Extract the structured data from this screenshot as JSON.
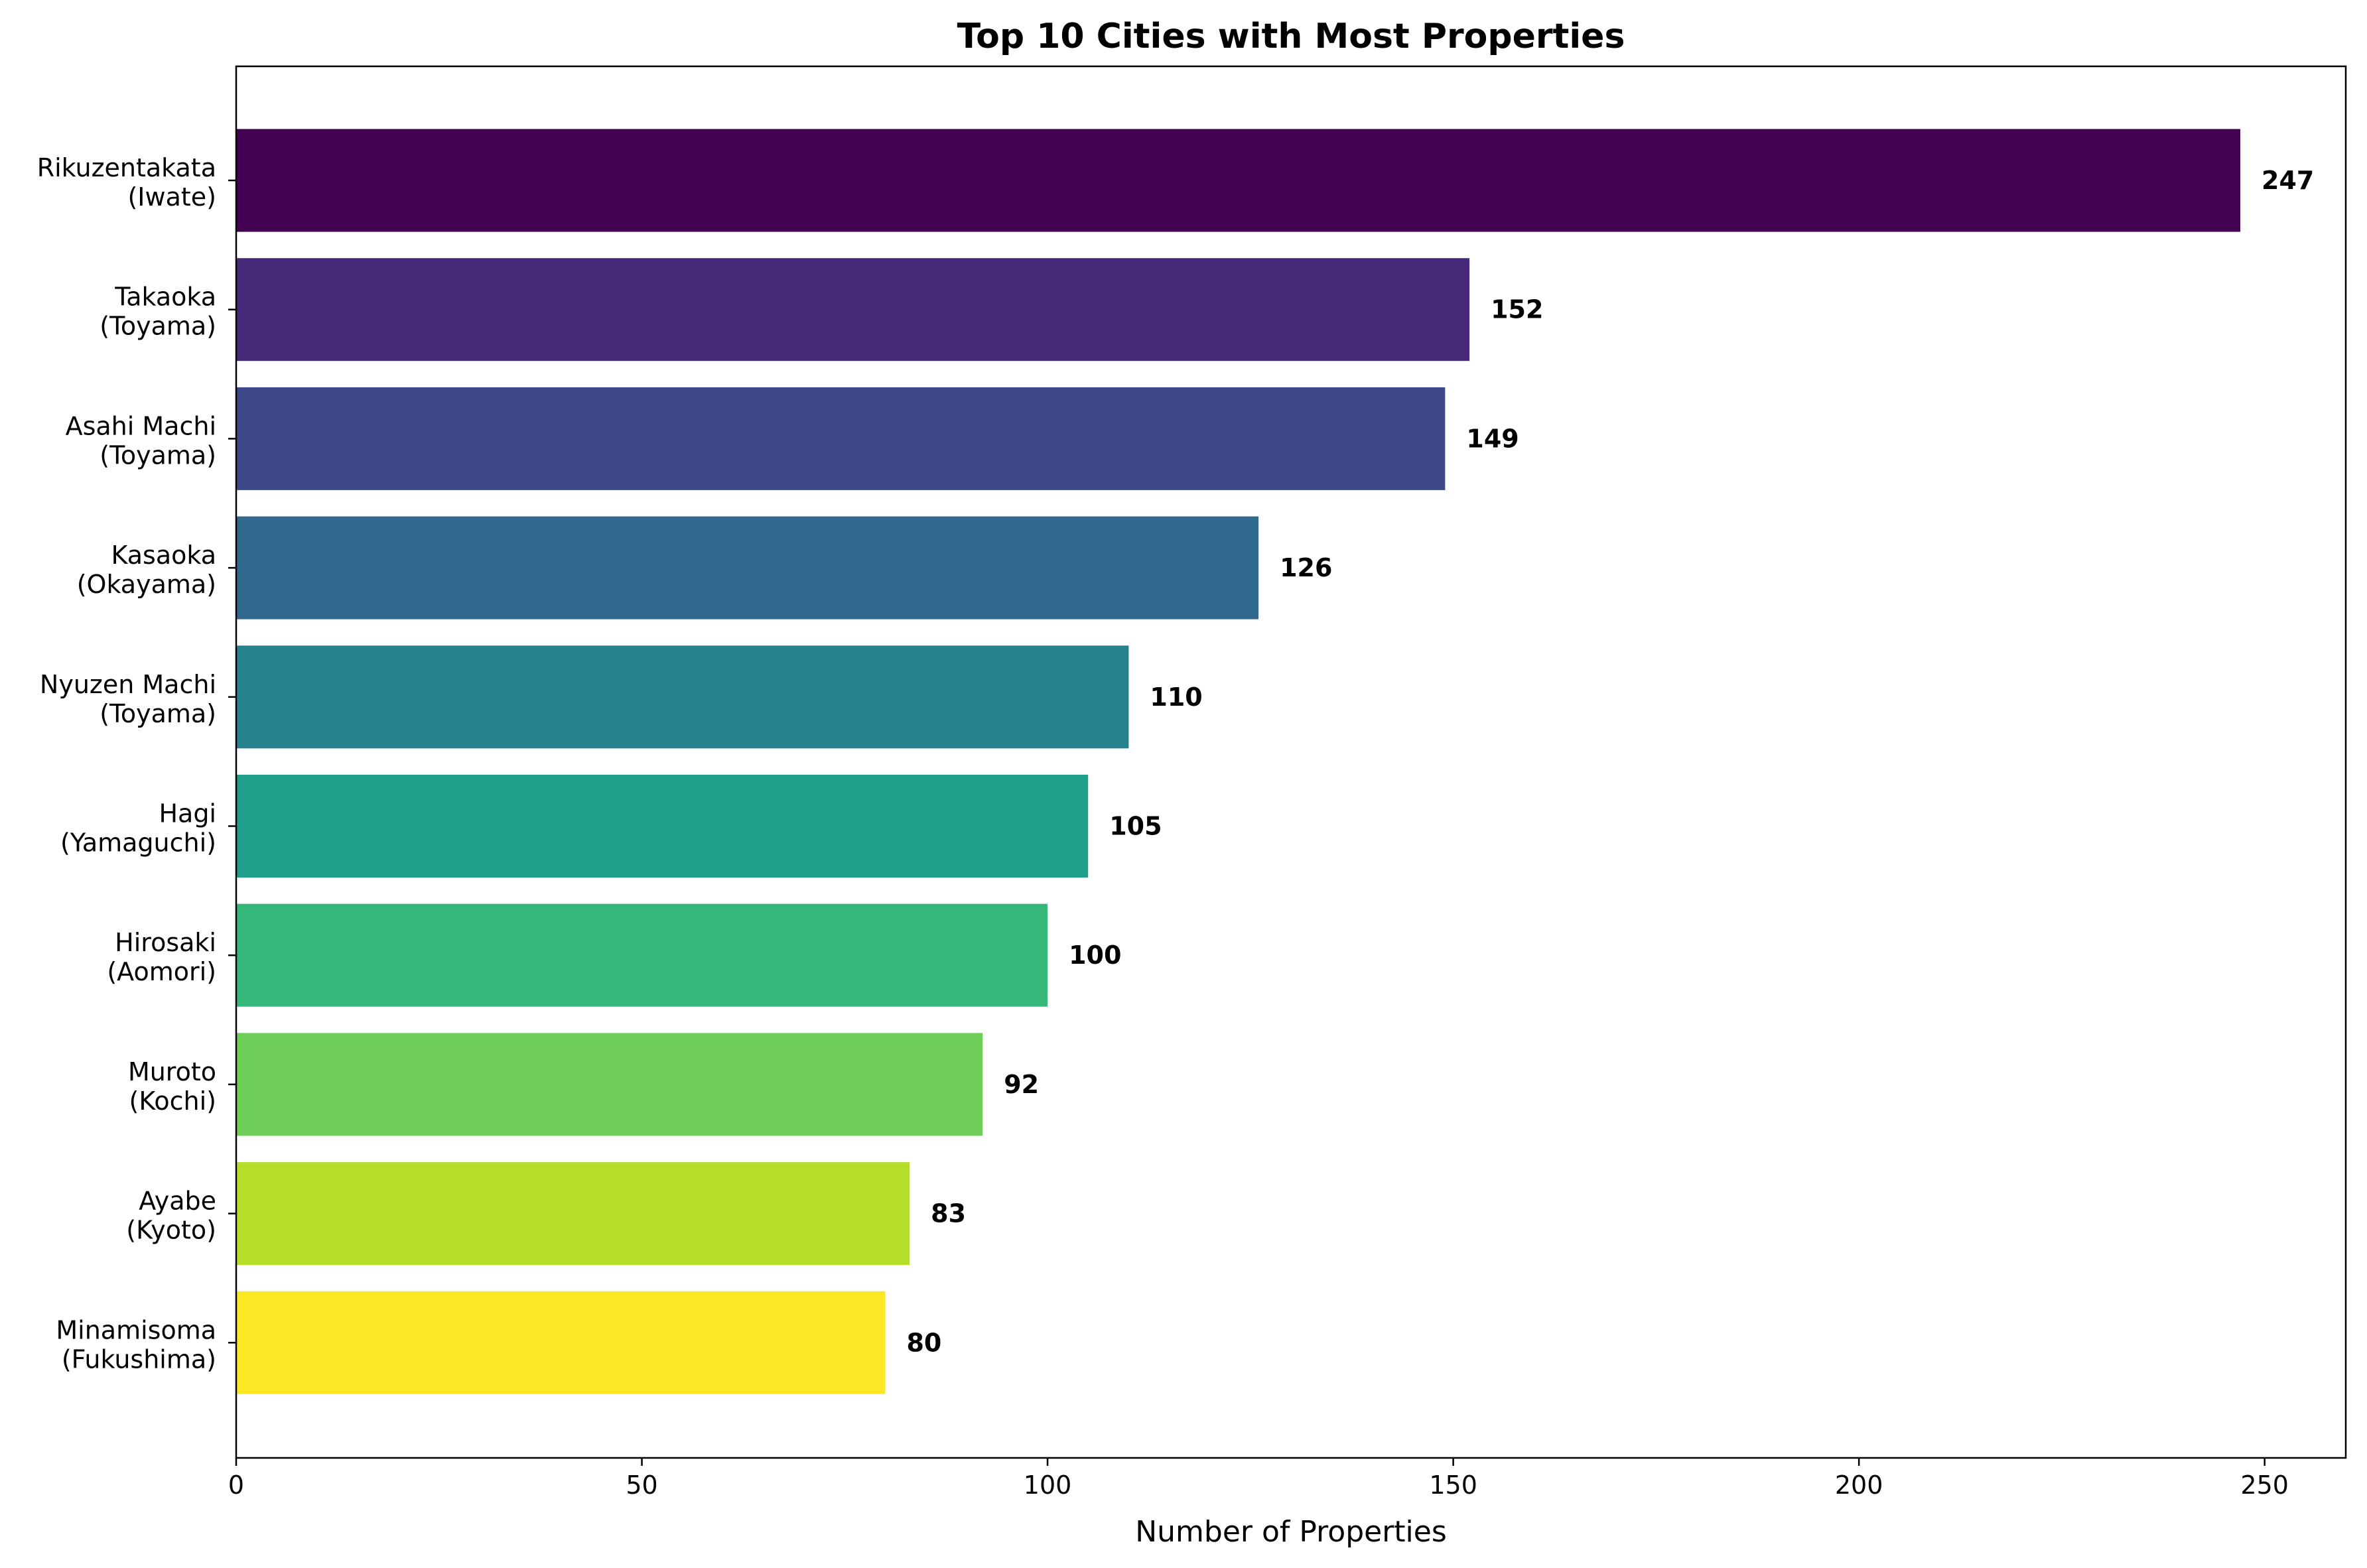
{
  "chart_data": {
    "type": "bar",
    "orientation": "horizontal",
    "title": "Top 10 Cities with Most Properties",
    "xlabel": "Number of Properties",
    "ylabel": "",
    "xlim": [
      0,
      260
    ],
    "xticks": [
      0,
      50,
      100,
      150,
      200,
      250
    ],
    "grid": false,
    "legend": false,
    "colormap": "viridis",
    "categories": [
      {
        "line1": "Rikuzentakata",
        "line2": "(Iwate)"
      },
      {
        "line1": "Takaoka",
        "line2": "(Toyama)"
      },
      {
        "line1": "Asahi Machi",
        "line2": "(Toyama)"
      },
      {
        "line1": "Kasaoka",
        "line2": "(Okayama)"
      },
      {
        "line1": "Nyuzen Machi",
        "line2": "(Toyama)"
      },
      {
        "line1": "Hagi",
        "line2": "(Yamaguchi)"
      },
      {
        "line1": "Hirosaki",
        "line2": "(Aomori)"
      },
      {
        "line1": "Muroto",
        "line2": "(Kochi)"
      },
      {
        "line1": "Ayabe",
        "line2": "(Kyoto)"
      },
      {
        "line1": "Minamisoma",
        "line2": "(Fukushima)"
      }
    ],
    "values": [
      247,
      152,
      149,
      126,
      110,
      105,
      100,
      92,
      83,
      80
    ],
    "colors": [
      "#440154",
      "#482878",
      "#3e4989",
      "#31688e",
      "#26828e",
      "#1f9e89",
      "#35b779",
      "#6ece58",
      "#b5de2b",
      "#fde725"
    ]
  }
}
